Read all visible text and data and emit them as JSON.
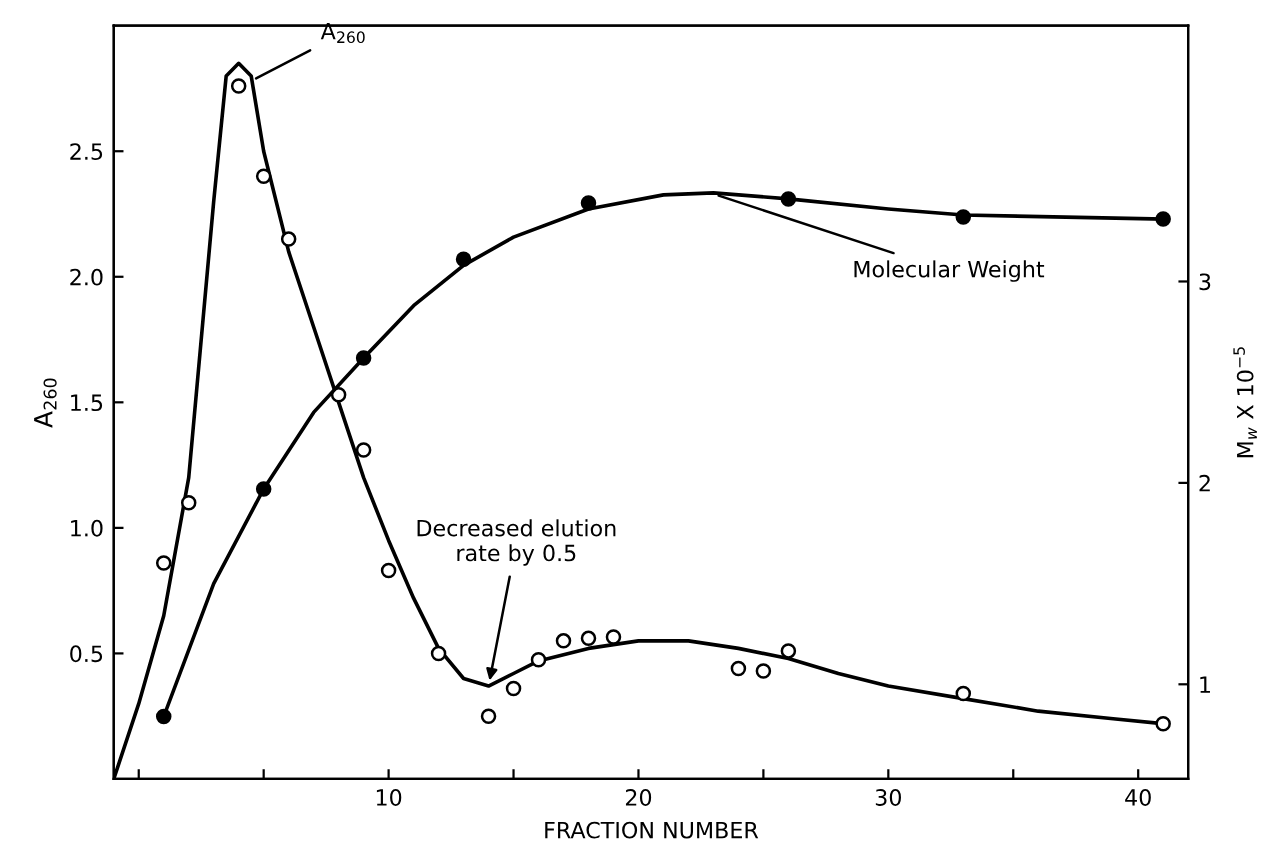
{
  "chart_data": {
    "type": "scatter",
    "xlabel": "FRACTION NUMBER",
    "ylabel": "A$_{260}$",
    "y2label": "M$_{w}$ X 10$^{−5}$",
    "xlim": [
      -1,
      42
    ],
    "ylim": [
      0,
      3.0
    ],
    "y2lim": [
      0.53,
      4.27
    ],
    "xticks": [
      {
        "value": 0,
        "label": null
      },
      {
        "value": 5,
        "label": null
      },
      10,
      {
        "value": 15,
        "label": null
      },
      20,
      {
        "value": 25,
        "label": null
      },
      30,
      {
        "value": 35,
        "label": null
      },
      40
    ],
    "yticks": [
      0.5,
      {
        "value": 1,
        "label": "1.0"
      },
      1.5,
      {
        "value": 2,
        "label": "2.0"
      },
      2.5
    ],
    "y2ticks": [
      1,
      2,
      3
    ],
    "grid": false,
    "legend": false,
    "series": [
      {
        "marker": "circle",
        "color": "#ffffff",
        "x": [
          1,
          2,
          4,
          5,
          6,
          8,
          9,
          10,
          12,
          14,
          15,
          16,
          17,
          18,
          19,
          24,
          25,
          26,
          33,
          41
        ],
        "values": [
          0.86,
          1.1,
          2.76,
          2.4,
          2.15,
          1.53,
          1.31,
          0.83,
          0.5,
          0.25,
          0.36,
          0.475,
          0.55,
          0.56,
          0.565,
          0.44,
          0.43,
          0.51,
          0.34,
          0.22
        ]
      },
      {
        "marker": "circle",
        "color": "#000000",
        "axis": "y2",
        "x": [
          1,
          5,
          9,
          13,
          18,
          26,
          33,
          41
        ],
        "values": [
          0.84,
          1.97,
          2.62,
          3.11,
          3.39,
          3.41,
          3.32,
          3.31
        ]
      },
      {
        "type": "line",
        "marker": "none",
        "line_style": "solid",
        "color": "#000000",
        "x": [
          -1,
          0,
          1,
          2,
          3,
          3.5,
          4,
          4.5,
          5,
          6,
          7,
          8,
          9,
          10,
          11,
          12,
          13,
          14,
          15,
          16,
          18,
          20,
          22,
          24,
          26,
          28,
          30,
          33,
          36,
          39,
          41
        ],
        "values": [
          0.0,
          0.3,
          0.65,
          1.2,
          2.3,
          2.8,
          2.85,
          2.8,
          2.5,
          2.1,
          1.8,
          1.5,
          1.2,
          0.95,
          0.72,
          0.52,
          0.4,
          0.37,
          0.42,
          0.47,
          0.52,
          0.55,
          0.55,
          0.52,
          0.48,
          0.42,
          0.37,
          0.32,
          0.27,
          0.24,
          0.22
        ]
      },
      {
        "type": "line",
        "marker": "none",
        "line_style": "solid",
        "color": "#000000",
        "axis": "y2",
        "x": [
          1,
          3,
          5,
          7,
          9,
          11,
          13,
          15,
          18,
          21,
          23,
          26,
          30,
          33,
          41
        ],
        "values": [
          0.84,
          1.5,
          1.97,
          2.35,
          2.62,
          2.88,
          3.08,
          3.22,
          3.36,
          3.43,
          3.44,
          3.41,
          3.36,
          3.33,
          3.31
        ]
      }
    ],
    "annotations": [
      {
        "text": "A$_{260}$",
        "x": 4.5,
        "y": 2.78
      },
      {
        "text": "Decreased elution\nrate by 0.5",
        "x": 14,
        "y": 0.37
      },
      {
        "text": "Molecular Weight",
        "x": 23,
        "y": 2.33
      }
    ]
  }
}
